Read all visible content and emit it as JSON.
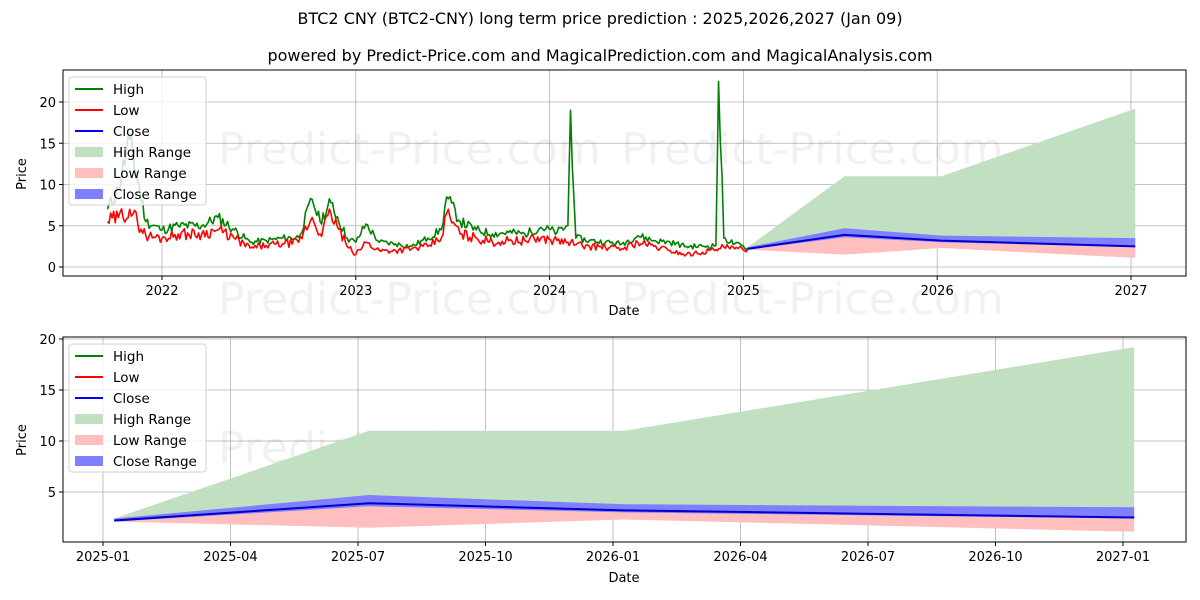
{
  "title": "BTC2 CNY (BTC2-CNY) long term price prediction : 2025,2026,2027 (Jan 09)",
  "subtitle": "powered by Predict-Price.com and MagicalPrediction.com and MagicalAnalysis.com",
  "watermark": "Predict-Price.com",
  "legend": [
    {
      "label": "High",
      "type": "line",
      "color": "#008000"
    },
    {
      "label": "Low",
      "type": "line",
      "color": "#ff0000"
    },
    {
      "label": "Close",
      "type": "line",
      "color": "#0000ff"
    },
    {
      "label": "High Range",
      "type": "patch",
      "color": "#c1e0c1"
    },
    {
      "label": "Low Range",
      "type": "patch",
      "color": "#ffbfbf"
    },
    {
      "label": "Close Range",
      "type": "patch",
      "color": "#7f7fff"
    }
  ],
  "colors": {
    "high": "#008000",
    "low": "#ff0000",
    "close": "#0000cc",
    "high_range": "#c1e0c1",
    "low_range": "#ffbfbf",
    "close_range": "#7f7fff",
    "grid": "#b0b0b0"
  },
  "chart_data": [
    {
      "type": "line",
      "title": "BTC2 CNY (BTC2-CNY) long term price prediction : 2025,2026,2027 (Jan 09)",
      "xlabel": "Date",
      "ylabel": "Price",
      "xticks": [
        "2022",
        "2023",
        "2024",
        "2025",
        "2026",
        "2027"
      ],
      "yticks": [
        0,
        5,
        10,
        15,
        20
      ],
      "ylim": [
        -0.6,
        24.5
      ],
      "grid": true,
      "legend_position": "upper left",
      "history": {
        "x": [
          "2021-09-20",
          "2021-10-10",
          "2021-11-01",
          "2021-12-01",
          "2022-01-01",
          "2022-02-01",
          "2022-03-15",
          "2022-04-15",
          "2022-05-15",
          "2022-06-15",
          "2022-07-15",
          "2022-08-15",
          "2022-09-15",
          "2022-10-10",
          "2022-10-25",
          "2022-11-15",
          "2022-12-15",
          "2023-01-01",
          "2023-01-20",
          "2023-02-15",
          "2023-03-15",
          "2023-04-15",
          "2023-05-15",
          "2023-06-10",
          "2023-06-20",
          "2023-07-15",
          "2023-08-15",
          "2023-09-15",
          "2023-10-15",
          "2023-11-15",
          "2023-12-15",
          "2024-01-15",
          "2024-02-05",
          "2024-02-10",
          "2024-02-20",
          "2024-03-15",
          "2024-04-15",
          "2024-05-15",
          "2024-06-15",
          "2024-07-15",
          "2024-08-15",
          "2024-09-15",
          "2024-10-15",
          "2024-11-10",
          "2024-11-15",
          "2024-11-25",
          "2024-12-15",
          "2025-01-09"
        ],
        "series": [
          {
            "name": "High",
            "values": [
              7.0,
              9.5,
              15.5,
              5.5,
              4.5,
              5.0,
              5.0,
              6.0,
              4.5,
              3.0,
              3.2,
              3.5,
              3.6,
              8.2,
              5.5,
              7.8,
              3.5,
              3.0,
              5.2,
              3.0,
              2.8,
              2.5,
              3.5,
              4.5,
              8.5,
              5.5,
              4.5,
              4.0,
              4.2,
              4.0,
              4.8,
              4.2,
              5.0,
              19.0,
              3.5,
              3.2,
              3.0,
              2.8,
              3.8,
              3.2,
              3.0,
              2.5,
              2.5,
              2.6,
              22.5,
              3.5,
              2.8,
              2.3
            ]
          },
          {
            "name": "Low",
            "values": [
              5.5,
              6.0,
              7.0,
              3.8,
              3.5,
              4.0,
              4.0,
              4.5,
              3.5,
              2.3,
              2.6,
              2.8,
              3.0,
              6.0,
              4.0,
              6.5,
              2.5,
              1.5,
              3.0,
              2.0,
              2.0,
              2.2,
              2.5,
              3.5,
              6.5,
              4.0,
              3.5,
              3.0,
              3.2,
              3.2,
              3.5,
              3.2,
              3.0,
              3.0,
              2.7,
              2.5,
              2.4,
              2.2,
              3.0,
              2.5,
              2.0,
              1.5,
              1.8,
              2.1,
              2.2,
              2.4,
              2.2,
              2.1
            ]
          }
        ]
      },
      "forecast": {
        "x": [
          "2025-01-09",
          "2025-07-09",
          "2026-01-09",
          "2027-01-09"
        ],
        "close": [
          2.2,
          3.9,
          3.2,
          2.5
        ],
        "close_range_high": [
          2.4,
          4.7,
          3.8,
          3.5
        ],
        "close_range_low": [
          2.1,
          3.6,
          3.0,
          2.4
        ],
        "high_range_high": [
          2.4,
          11.0,
          11.0,
          19.2
        ],
        "low_range_low": [
          2.1,
          1.5,
          2.3,
          1.1
        ]
      }
    },
    {
      "type": "area",
      "xlabel": "Date",
      "ylabel": "Price",
      "xticks": [
        "2025-01",
        "2025-04",
        "2025-07",
        "2025-10",
        "2026-01",
        "2026-04",
        "2026-07",
        "2026-10",
        "2027-01"
      ],
      "yticks": [
        5,
        10,
        15,
        20
      ],
      "ylim": [
        0.2,
        20.3
      ],
      "grid": true,
      "legend_position": "upper left",
      "forecast": {
        "x": [
          "2025-01-09",
          "2025-07-09",
          "2026-01-09",
          "2027-01-09"
        ],
        "close": [
          2.2,
          3.9,
          3.2,
          2.5
        ],
        "close_range_high": [
          2.4,
          4.7,
          3.8,
          3.5
        ],
        "close_range_low": [
          2.1,
          3.6,
          3.0,
          2.4
        ],
        "high_range_high": [
          2.4,
          11.0,
          11.0,
          19.2
        ],
        "low_range_low": [
          2.1,
          1.5,
          2.3,
          1.1
        ]
      }
    }
  ]
}
